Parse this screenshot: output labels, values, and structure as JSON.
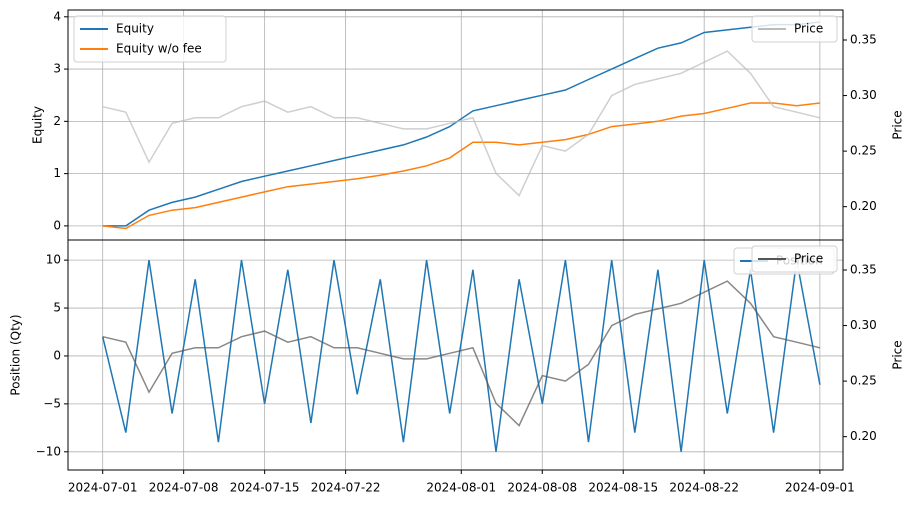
{
  "chart_data": [
    {
      "type": "line",
      "ylabel": "Equity",
      "y2label": "Price",
      "x": [
        "2024-07-01",
        "2024-07-03",
        "2024-07-05",
        "2024-07-07",
        "2024-07-09",
        "2024-07-11",
        "2024-07-13",
        "2024-07-15",
        "2024-07-17",
        "2024-07-19",
        "2024-07-21",
        "2024-07-23",
        "2024-07-25",
        "2024-07-27",
        "2024-07-29",
        "2024-07-31",
        "2024-08-02",
        "2024-08-04",
        "2024-08-06",
        "2024-08-08",
        "2024-08-10",
        "2024-08-12",
        "2024-08-14",
        "2024-08-16",
        "2024-08-18",
        "2024-08-20",
        "2024-08-22",
        "2024-08-24",
        "2024-08-26",
        "2024-08-28",
        "2024-08-30",
        "2024-09-01"
      ],
      "series": [
        {
          "name": "Equity",
          "color": "#1f77b4",
          "values": [
            0,
            0.0,
            0.3,
            0.45,
            0.55,
            0.7,
            0.85,
            0.95,
            1.05,
            1.15,
            1.25,
            1.35,
            1.45,
            1.55,
            1.7,
            1.9,
            2.2,
            2.3,
            2.4,
            2.5,
            2.6,
            2.8,
            3.0,
            3.2,
            3.4,
            3.5,
            3.7,
            3.75,
            3.8,
            3.85,
            3.85,
            3.9
          ]
        },
        {
          "name": "Equity w/o fee",
          "color": "#ff7f0e",
          "values": [
            0,
            -0.05,
            0.2,
            0.3,
            0.35,
            0.45,
            0.55,
            0.65,
            0.75,
            0.8,
            0.85,
            0.9,
            0.97,
            1.05,
            1.15,
            1.3,
            1.6,
            1.6,
            1.55,
            1.6,
            1.65,
            1.75,
            1.9,
            1.95,
            2.0,
            2.1,
            2.15,
            2.25,
            2.35,
            2.35,
            2.3,
            2.35
          ]
        },
        {
          "name": "Price",
          "color": "#bbbbbb",
          "axis": "y2",
          "values": [
            0.29,
            0.285,
            0.24,
            0.275,
            0.28,
            0.28,
            0.29,
            0.295,
            0.285,
            0.29,
            0.28,
            0.28,
            0.275,
            0.27,
            0.27,
            0.275,
            0.28,
            0.23,
            0.21,
            0.255,
            0.25,
            0.265,
            0.3,
            0.31,
            0.315,
            0.32,
            0.33,
            0.34,
            0.32,
            0.29,
            0.285,
            0.28
          ]
        }
      ],
      "ylim": [
        -0.27,
        4.13
      ],
      "yticks": [
        0,
        1,
        2,
        3,
        4
      ],
      "y2lim": [
        0.17,
        0.377
      ],
      "y2ticks": [
        {
          "value": 0.2,
          "label": "0.20"
        },
        0.25,
        {
          "value": 0.3,
          "label": "0.30"
        },
        0.35
      ],
      "grid": true
    },
    {
      "type": "line",
      "ylabel": "Position (Qty)",
      "y2label": "Price",
      "x": [
        "2024-07-01",
        "2024-07-03",
        "2024-07-05",
        "2024-07-07",
        "2024-07-09",
        "2024-07-11",
        "2024-07-13",
        "2024-07-15",
        "2024-07-17",
        "2024-07-19",
        "2024-07-21",
        "2024-07-23",
        "2024-07-25",
        "2024-07-27",
        "2024-07-29",
        "2024-07-31",
        "2024-08-02",
        "2024-08-04",
        "2024-08-06",
        "2024-08-08",
        "2024-08-10",
        "2024-08-12",
        "2024-08-14",
        "2024-08-16",
        "2024-08-18",
        "2024-08-20",
        "2024-08-22",
        "2024-08-24",
        "2024-08-26",
        "2024-08-28",
        "2024-08-30",
        "2024-09-01"
      ],
      "series": [
        {
          "name": "Position",
          "color": "#1f77b4",
          "values": [
            2,
            -8,
            10,
            -6,
            8,
            -9,
            10,
            -5,
            9,
            -7,
            10,
            -4,
            8,
            -9,
            10,
            -6,
            9,
            -10,
            8,
            -5,
            10,
            -9,
            10,
            -8,
            9,
            -10,
            10,
            -6,
            9,
            -8,
            10,
            -3
          ]
        },
        {
          "name": "Price",
          "color": "#555555",
          "axis": "y2",
          "values": [
            0.29,
            0.285,
            0.24,
            0.275,
            0.28,
            0.28,
            0.29,
            0.295,
            0.285,
            0.29,
            0.28,
            0.28,
            0.275,
            0.27,
            0.27,
            0.275,
            0.28,
            0.23,
            0.21,
            0.255,
            0.25,
            0.265,
            0.3,
            0.31,
            0.315,
            0.32,
            0.33,
            0.34,
            0.32,
            0.29,
            0.285,
            0.28
          ]
        }
      ],
      "xlim": [
        "2024-06-28",
        "2024-09-03"
      ],
      "xticks": [
        "2024-07-01",
        "2024-07-08",
        "2024-07-15",
        "2024-07-22",
        "2024-08-01",
        "2024-08-08",
        "2024-08-15",
        "2024-08-22",
        "2024-09-01"
      ],
      "ylim": [
        -11.9,
        12.1
      ],
      "yticks": [
        {
          "value": -10,
          "label": "−10"
        },
        {
          "value": -5,
          "label": "−5"
        },
        0,
        5,
        10
      ],
      "y2lim": [
        0.17,
        0.377
      ],
      "y2ticks": [
        {
          "value": 0.2,
          "label": "0.20"
        },
        0.25,
        {
          "value": 0.3,
          "label": "0.30"
        },
        0.35
      ],
      "grid": true
    }
  ]
}
